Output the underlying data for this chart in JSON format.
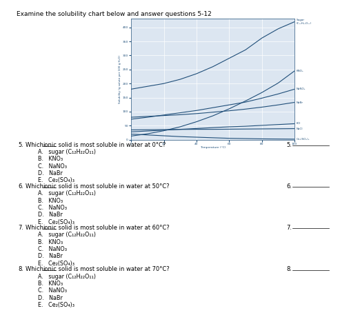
{
  "title": "Examine the solubility chart below and answer questions 5-12",
  "chart_xlabel": "Temperature (°C)",
  "chart_ylabel": "Solubility (g solute per 100 g H₂O)",
  "xlim": [
    0,
    100
  ],
  "ylim": [
    0,
    430
  ],
  "yticks": [
    0,
    50,
    100,
    150,
    200,
    250,
    300,
    350,
    400
  ],
  "xticks": [
    0,
    20,
    40,
    60,
    80,
    100
  ],
  "background_color": "#ffffff",
  "chart_bg": "#dce6f1",
  "grid_color": "#ffffff",
  "line_color": "#1f4e79",
  "curves": [
    {
      "name": "Sugar\n(C₁₂H₂₂O₁₁)",
      "x": [
        0,
        10,
        20,
        30,
        40,
        50,
        60,
        70,
        80,
        90,
        100
      ],
      "y": [
        180,
        190,
        200,
        215,
        235,
        260,
        290,
        320,
        362,
        395,
        420
      ]
    },
    {
      "name": "KNO₃",
      "x": [
        0,
        10,
        20,
        30,
        40,
        50,
        60,
        70,
        80,
        90,
        100
      ],
      "y": [
        13,
        21,
        32,
        46,
        64,
        85,
        110,
        138,
        168,
        202,
        245
      ]
    },
    {
      "name": "NaNO₃",
      "x": [
        0,
        10,
        20,
        30,
        40,
        50,
        60,
        70,
        80,
        90,
        100
      ],
      "y": [
        73,
        80,
        88,
        96,
        104,
        114,
        124,
        134,
        148,
        163,
        180
      ]
    },
    {
      "name": "NaBr",
      "x": [
        0,
        10,
        20,
        30,
        40,
        50,
        60,
        70,
        80,
        90,
        100
      ],
      "y": [
        80,
        83,
        86,
        89,
        93,
        98,
        103,
        109,
        116,
        124,
        133
      ]
    },
    {
      "name": "KCl",
      "x": [
        0,
        10,
        20,
        30,
        40,
        50,
        60,
        70,
        80,
        90,
        100
      ],
      "y": [
        28,
        31,
        34,
        37,
        40,
        43,
        46,
        48,
        51,
        54,
        57
      ]
    },
    {
      "name": "NaCl",
      "x": [
        0,
        10,
        20,
        30,
        40,
        50,
        60,
        70,
        80,
        90,
        100
      ],
      "y": [
        35,
        35.5,
        36,
        36.5,
        37,
        37,
        37.5,
        38,
        38.5,
        39,
        39.5
      ]
    },
    {
      "name": "Ce₂(SO₄)₃",
      "x": [
        0,
        10,
        20,
        30,
        40,
        50,
        60,
        70,
        80,
        90,
        100
      ],
      "y": [
        20,
        17,
        14,
        11,
        9,
        7,
        5,
        4,
        3,
        2.5,
        2
      ]
    }
  ],
  "questions": [
    {
      "num": "5.",
      "rest": " solid is most soluble in water at 0°C?",
      "choices": [
        "A.   sugar (C₁₂H₂₂O₁₁)",
        "B.   KNO₃",
        "C.   NaNO₃",
        "D.   NaBr",
        "E.   Ce₂(SO₄)₃"
      ],
      "num_right": "5."
    },
    {
      "num": "6.",
      "rest": " solid is most soluble in water at 50°C?",
      "choices": [
        "A.   sugar (C₁₂H₂₂O₁₁)",
        "B.   KNO₃",
        "C.   NaNO₃",
        "D.   NaBr",
        "E.   Ce₂(SO₄)₃"
      ],
      "num_right": "6."
    },
    {
      "num": "7.",
      "rest": " solid is most soluble in water at 60°C?",
      "choices": [
        "A.   sugar (C₁₂H₂₂O₁₁)",
        "B.   KNO₃",
        "C.   NaNO₃",
        "D.   NaBr",
        "E.   Ce₂(SO₄)₃"
      ],
      "num_right": "7."
    },
    {
      "num": "8.",
      "rest": " solid is most soluble in water at 70°C?",
      "choices": [
        "A.   sugar (C₁₂H₂₂O₁₁)",
        "B.   KNO₃",
        "C.   NaNO₃",
        "D.   NaBr",
        "E.   Ce₂(SO₄)₃"
      ],
      "num_right": "8."
    }
  ]
}
